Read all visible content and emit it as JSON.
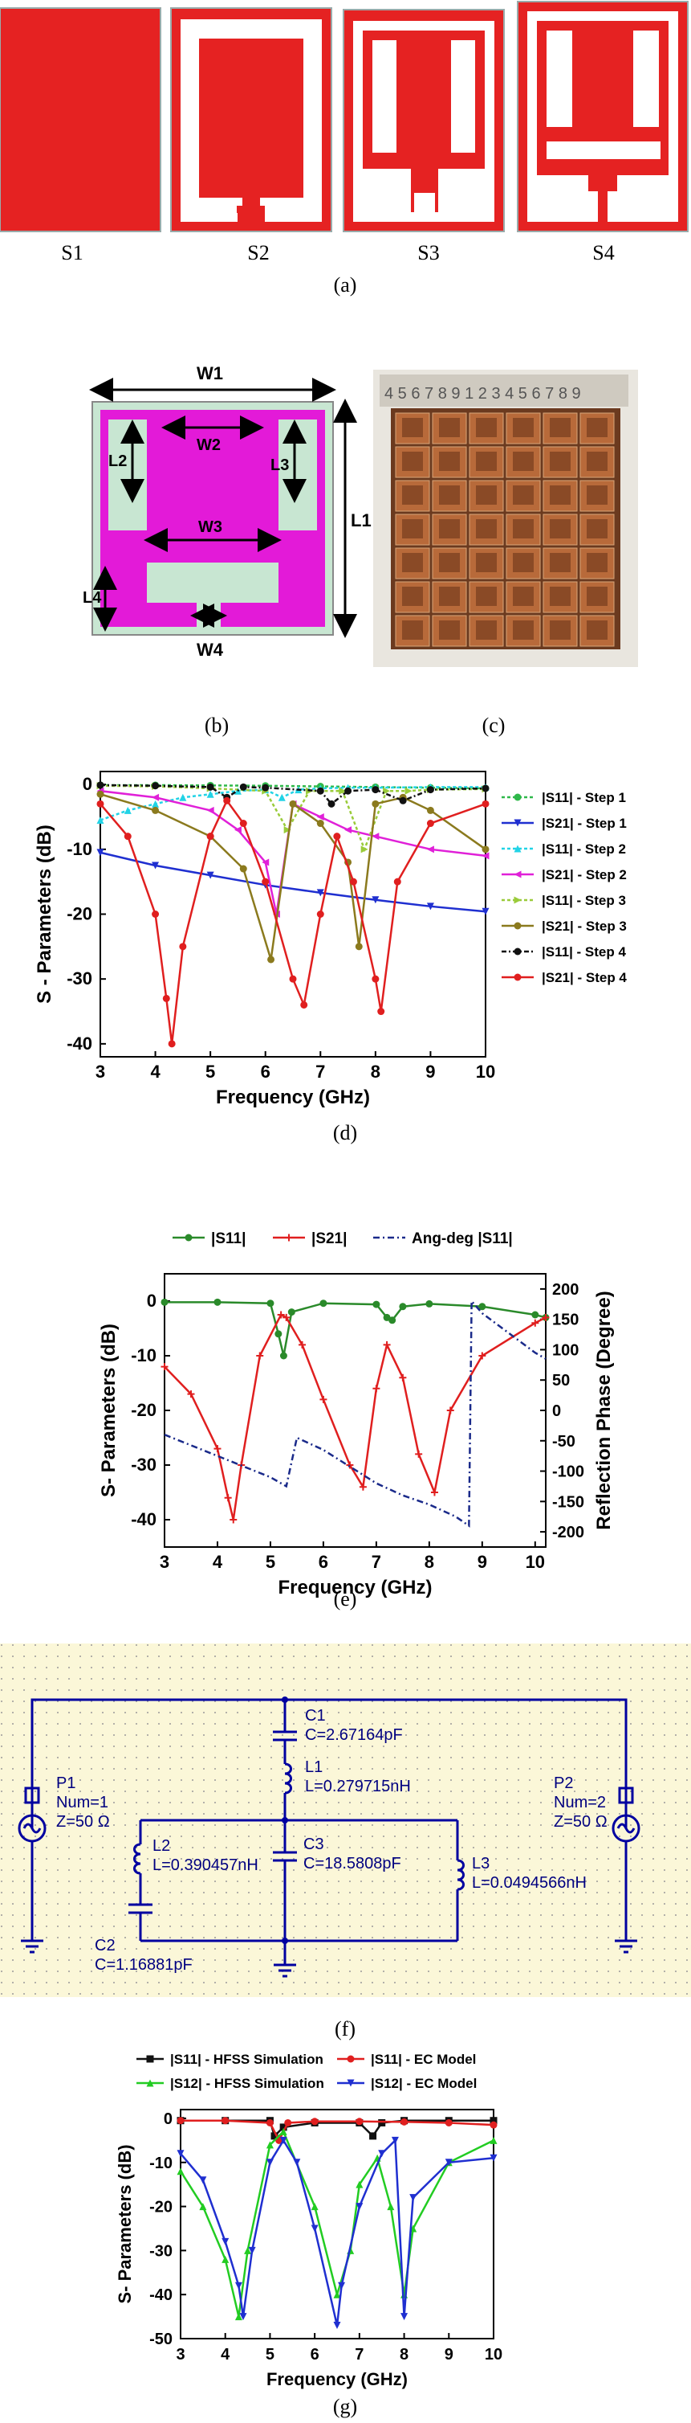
{
  "panel_a": {
    "labels": [
      "S1",
      "S2",
      "S3",
      "S4"
    ],
    "caption": "(a)",
    "fill_color": "#e52222"
  },
  "panel_b": {
    "dims": {
      "W1": "W1",
      "W2": "W2",
      "W3": "W3",
      "W4": "W4",
      "L1": "L1",
      "L2": "L2",
      "L3": "L3",
      "L4": "L4"
    },
    "caption": "(b)",
    "metal_color": "#e31ad8",
    "substrate_color": "#c8e6d2"
  },
  "panel_c": {
    "caption": "(c)",
    "ruler_text": "4 5 6 7 8 9 1 2 3 4 5 6 7 8 9"
  },
  "panel_d": {
    "caption": "(d)",
    "chart_data": {
      "type": "line",
      "xlabel": "Frequency (GHz)",
      "ylabel": "S - Parameters (dB)",
      "xlim": [
        3,
        10
      ],
      "ylim": [
        -42,
        2
      ],
      "xticks": [
        3,
        4,
        5,
        6,
        7,
        8,
        9,
        10
      ],
      "yticks": [
        0,
        -10,
        -20,
        -30,
        -40
      ],
      "series": [
        {
          "name": "|S11| - Step 1",
          "color": "#2fb84a",
          "dash": "4,3",
          "marker": "circle",
          "x": [
            3,
            4,
            5,
            6,
            7,
            8,
            9,
            10
          ],
          "y": [
            -0.1,
            -0.1,
            -0.15,
            -0.2,
            -0.3,
            -0.4,
            -0.5,
            -0.6
          ]
        },
        {
          "name": "|S21| - Step 1",
          "color": "#1f2fd0",
          "dash": "",
          "marker": "triangle-down",
          "x": [
            3,
            4,
            5,
            6,
            7,
            8,
            9,
            10
          ],
          "y": [
            -10.5,
            -12.5,
            -14,
            -15.5,
            -16.7,
            -17.8,
            -18.8,
            -19.6
          ]
        },
        {
          "name": "|S11| - Step 2",
          "color": "#22d3e6",
          "dash": "4,3",
          "marker": "triangle-up",
          "x": [
            3,
            3.5,
            4,
            4.5,
            5,
            5.5,
            6,
            6.3,
            6.6,
            7,
            7.5,
            8,
            9,
            10
          ],
          "y": [
            -5.5,
            -4,
            -3,
            -2,
            -1.5,
            -1,
            -0.8,
            -2,
            -0.8,
            -0.6,
            -0.5,
            -0.5,
            -0.4,
            -0.4
          ]
        },
        {
          "name": "|S21| - Step 2",
          "color": "#e020d8",
          "dash": "",
          "marker": "triangle-left",
          "x": [
            3,
            4,
            5,
            5.5,
            6,
            6.2,
            6.5,
            7,
            7.5,
            8,
            9,
            10
          ],
          "y": [
            -1,
            -2,
            -4,
            -7,
            -12,
            -20,
            -3,
            -5,
            -7,
            -8,
            -10,
            -11
          ]
        },
        {
          "name": "|S11| - Step 3",
          "color": "#9acb3a",
          "dash": "4,3",
          "marker": "triangle-right",
          "x": [
            3,
            4,
            5,
            6,
            6.4,
            6.8,
            7.4,
            7.8,
            8.2,
            8.6,
            9,
            10
          ],
          "y": [
            -0.2,
            -0.3,
            -0.6,
            -1,
            -7,
            -1,
            -1,
            -10,
            -1,
            -1,
            -0.8,
            -0.7
          ]
        },
        {
          "name": "|S21| - Step 3",
          "color": "#8b7a1e",
          "dash": "",
          "marker": "circle",
          "x": [
            3,
            4,
            5,
            5.6,
            6.1,
            6.5,
            7,
            7.5,
            7.7,
            8,
            8.5,
            9,
            10
          ],
          "y": [
            -1.5,
            -4,
            -8,
            -13,
            -27,
            -3,
            -6,
            -12,
            -25,
            -3,
            -2,
            -4,
            -10
          ]
        },
        {
          "name": "|S11| - Step 4",
          "color": "#111111",
          "dash": "6,3,2,3",
          "marker": "circle",
          "x": [
            3,
            4,
            5,
            5.3,
            5.6,
            6,
            7,
            7.2,
            7.5,
            8,
            8.5,
            9,
            10
          ],
          "y": [
            -0.1,
            -0.2,
            -0.4,
            -2,
            -0.4,
            -0.5,
            -1,
            -3,
            -1,
            -0.8,
            -2.5,
            -0.8,
            -0.6
          ]
        },
        {
          "name": "|S21| - Step 4",
          "color": "#e01f1f",
          "dash": "",
          "marker": "circle",
          "x": [
            3,
            3.5,
            4,
            4.2,
            4.3,
            4.5,
            5,
            5.3,
            5.6,
            6,
            6.5,
            6.7,
            7,
            7.3,
            7.6,
            8,
            8.1,
            8.4,
            9,
            10
          ],
          "y": [
            -3,
            -8,
            -20,
            -33,
            -40,
            -25,
            -8,
            -2.5,
            -6,
            -15,
            -30,
            -34,
            -20,
            -8,
            -15,
            -30,
            -35,
            -15,
            -6,
            -3
          ]
        }
      ]
    }
  },
  "panel_e": {
    "caption": "(e)",
    "chart_data": {
      "type": "line",
      "xlabel": "Frequency (GHz)",
      "ylabel": "S- Parameters (dB)",
      "y2label": "Reflection Phase (Degree)",
      "xlim": [
        3,
        10.2
      ],
      "ylim": [
        -45,
        5
      ],
      "y2lim": [
        -225,
        225
      ],
      "xticks": [
        3,
        4,
        5,
        6,
        7,
        8,
        9,
        10
      ],
      "yticks": [
        0,
        -10,
        -20,
        -30,
        -40
      ],
      "y2ticks": [
        200,
        150,
        100,
        50,
        0,
        -50,
        -100,
        -150,
        -200
      ],
      "legend": [
        "|S11|",
        "|S21|",
        "Ang-deg |S11|"
      ],
      "series": [
        {
          "name": "|S11|",
          "color": "#2a8a2a",
          "marker": "circle",
          "axis": "left",
          "x": [
            3,
            4,
            5,
            5.15,
            5.25,
            5.4,
            6,
            7,
            7.2,
            7.3,
            7.5,
            8,
            9,
            10,
            10.2
          ],
          "y": [
            -0.2,
            -0.2,
            -0.4,
            -6,
            -10,
            -2,
            -0.4,
            -0.6,
            -3,
            -3.5,
            -1,
            -0.5,
            -1,
            -2.5,
            -3
          ]
        },
        {
          "name": "|S21|",
          "color": "#e01f1f",
          "marker": "plus",
          "axis": "left",
          "x": [
            3,
            3.5,
            4,
            4.2,
            4.3,
            4.45,
            4.8,
            5.2,
            5.3,
            5.6,
            6,
            6.5,
            6.75,
            7,
            7.2,
            7.5,
            7.8,
            8.1,
            8.4,
            9,
            10,
            10.2
          ],
          "y": [
            -12,
            -17,
            -27,
            -36,
            -40,
            -30,
            -10,
            -2.5,
            -3,
            -8,
            -18,
            -30,
            -34,
            -16,
            -8,
            -14,
            -28,
            -35,
            -20,
            -10,
            -4,
            -3
          ]
        },
        {
          "name": "Ang-deg |S11|",
          "color": "#1a2a8a",
          "dash": "8,4,2,4",
          "marker": "none",
          "axis": "right",
          "x": [
            3,
            4,
            5,
            5.3,
            5.5,
            6,
            7,
            7.5,
            8,
            8.5,
            8.75,
            8.8,
            9,
            10,
            10.2
          ],
          "y": [
            -40,
            -75,
            -110,
            -125,
            -45,
            -65,
            -120,
            -140,
            -155,
            -175,
            -190,
            180,
            160,
            95,
            85
          ]
        }
      ]
    }
  },
  "panel_f": {
    "caption": "(f)",
    "P1": {
      "name": "P1",
      "num": "Num=1",
      "z": "Z=50 Ω"
    },
    "P2": {
      "name": "P2",
      "num": "Num=2",
      "z": "Z=50 Ω"
    },
    "C1": {
      "name": "C1",
      "value": "C=2.67164pF"
    },
    "L1": {
      "name": "L1",
      "value": "L=0.279715nH"
    },
    "L2": {
      "name": "L2",
      "value": "L=0.390457nH"
    },
    "C3": {
      "name": "C3",
      "value": "C=18.5808pF"
    },
    "L3": {
      "name": "L3",
      "value": "L=0.0494566nH"
    },
    "C2": {
      "name": "C2",
      "value": "C=1.16881pF"
    },
    "wire_color": "#0000a0",
    "label_color": "#000080",
    "bg_color": "#fbf7d8"
  },
  "panel_g": {
    "caption": "(g)",
    "chart_data": {
      "type": "line",
      "xlabel": "Frequency (GHz)",
      "ylabel": "S- Parameters (dB)",
      "xlim": [
        3,
        10
      ],
      "ylim": [
        -50,
        2
      ],
      "xticks": [
        3,
        4,
        5,
        6,
        7,
        8,
        9,
        10
      ],
      "yticks": [
        0,
        -10,
        -20,
        -30,
        -40,
        -50
      ],
      "series": [
        {
          "name": "|S11| - HFSS Simulation",
          "color": "#111111",
          "marker": "square",
          "x": [
            3,
            4,
            5,
            5.1,
            5.3,
            6,
            7,
            7.3,
            7.5,
            8,
            9,
            10
          ],
          "y": [
            -0.5,
            -0.5,
            -0.5,
            -4,
            -2,
            -1,
            -1,
            -4,
            -1,
            -0.5,
            -0.5,
            -0.5
          ]
        },
        {
          "name": "|S11| - EC Model",
          "color": "#e01f1f",
          "marker": "circle",
          "x": [
            3,
            4,
            5,
            5.2,
            5.4,
            6,
            7,
            8,
            9,
            10
          ],
          "y": [
            -0.5,
            -0.5,
            -1,
            -5,
            -1,
            -0.7,
            -0.7,
            -0.8,
            -1,
            -1.5
          ]
        },
        {
          "name": "|S12| - HFSS Simulation",
          "color": "#22cc22",
          "marker": "triangle-up",
          "x": [
            3,
            3.5,
            4,
            4.3,
            4.5,
            5,
            5.3,
            6,
            6.5,
            6.8,
            7,
            7.4,
            7.7,
            8,
            8.2,
            9,
            10
          ],
          "y": [
            -12,
            -20,
            -32,
            -45,
            -30,
            -6,
            -3,
            -20,
            -40,
            -30,
            -15,
            -9,
            -20,
            -40,
            -25,
            -10,
            -5
          ]
        },
        {
          "name": "|S12| - EC Model",
          "color": "#1f2fd0",
          "marker": "triangle-down",
          "x": [
            3,
            3.5,
            4,
            4.3,
            4.4,
            4.6,
            5,
            5.3,
            5.6,
            6,
            6.5,
            6.6,
            7,
            7.5,
            7.8,
            8,
            8.2,
            9,
            10
          ],
          "y": [
            -8,
            -14,
            -28,
            -38,
            -45,
            -30,
            -10,
            -5,
            -10,
            -25,
            -47,
            -38,
            -20,
            -8,
            -5,
            -45,
            -18,
            -10,
            -9
          ]
        }
      ]
    }
  }
}
